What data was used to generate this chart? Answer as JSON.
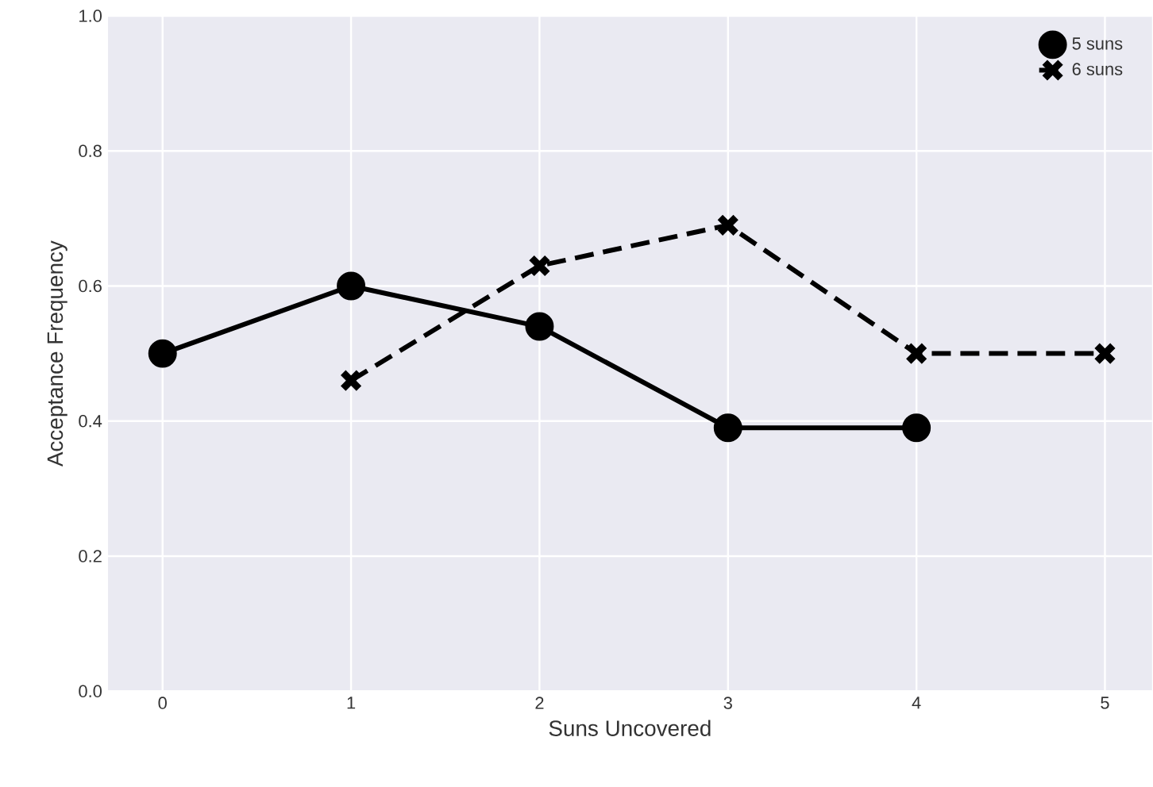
{
  "chart_data": {
    "type": "line",
    "xlabel": "Suns Uncovered",
    "ylabel": "Acceptance Frequency",
    "x": [
      0,
      1,
      2,
      3,
      4,
      5
    ],
    "series": [
      {
        "name": "5 suns",
        "color": "#000000",
        "marker": "circle",
        "line_style": "solid",
        "values": [
          0.5,
          0.6,
          0.54,
          0.39,
          0.39,
          null
        ]
      },
      {
        "name": "6 suns",
        "color": "#000000",
        "marker": "cross",
        "line_style": "dashed",
        "values": [
          null,
          0.46,
          0.63,
          0.69,
          0.5,
          0.5
        ]
      }
    ],
    "xlim": [
      -0.29,
      5.25
    ],
    "ylim": [
      0,
      1.0
    ],
    "xticks": [
      0,
      1,
      2,
      3,
      4,
      5
    ],
    "yticks": [
      {
        "value": 0,
        "label": "0.0"
      },
      {
        "value": 0.2,
        "label": "0.2"
      },
      {
        "value": 0.4,
        "label": "0.4"
      },
      {
        "value": 0.6,
        "label": "0.6"
      },
      {
        "value": 0.8,
        "label": "0.8"
      },
      {
        "value": 1.0,
        "label": "1.0"
      }
    ],
    "grid": true,
    "legend": "top right"
  }
}
